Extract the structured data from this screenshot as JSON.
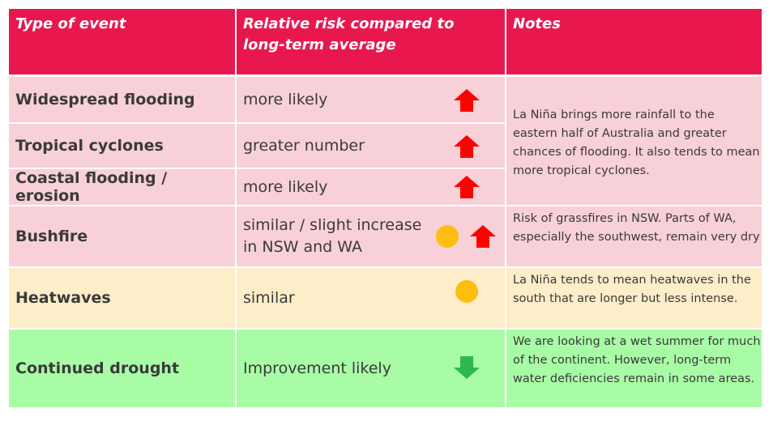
{
  "header": {
    "type_of_event": "Type of event",
    "relative_risk": "Relative risk compared to long-term average",
    "notes": "Notes"
  },
  "rows": [
    {
      "event": "Widespread flooding",
      "risk": "more likely",
      "indicator": "up-arrow"
    },
    {
      "event": "Tropical cyclones",
      "risk": "greater number",
      "indicator": "up-arrow"
    },
    {
      "event": "Coastal flooding / erosion",
      "risk": "more likely",
      "indicator": "up-arrow"
    },
    {
      "event": "Bushfire",
      "risk": "similar / slight increase in NSW and WA",
      "indicator": "circle-and-up-arrow"
    },
    {
      "event": "Heatwaves",
      "risk": "similar",
      "indicator": "circle"
    },
    {
      "event": "Continued drought",
      "risk": "Improvement likely",
      "indicator": "down-arrow"
    }
  ],
  "notes": {
    "flooding_cyclones": "La Niña brings more rainfall to the eastern half of Australia and greater chances of flooding. It also tends to mean more tropical cyclones.",
    "bushfire": "Risk of grassfires in NSW. Parts of WA, especially the southwest, remain very dry",
    "heatwaves": "La Niña tends to mean heatwaves in the south that are longer but less intense.",
    "drought": "We are looking at a wet summer for much of the continent. However, long-term water deficiencies remain in some areas."
  },
  "colors": {
    "header_bg": "#e8184f",
    "pink_row_bg": "#f8d0d8",
    "cream_row_bg": "#fdedc9",
    "green_row_bg": "#a8fca6",
    "up_arrow": "#ff0000",
    "down_arrow": "#2db84a",
    "circle": "#fdbe10"
  }
}
